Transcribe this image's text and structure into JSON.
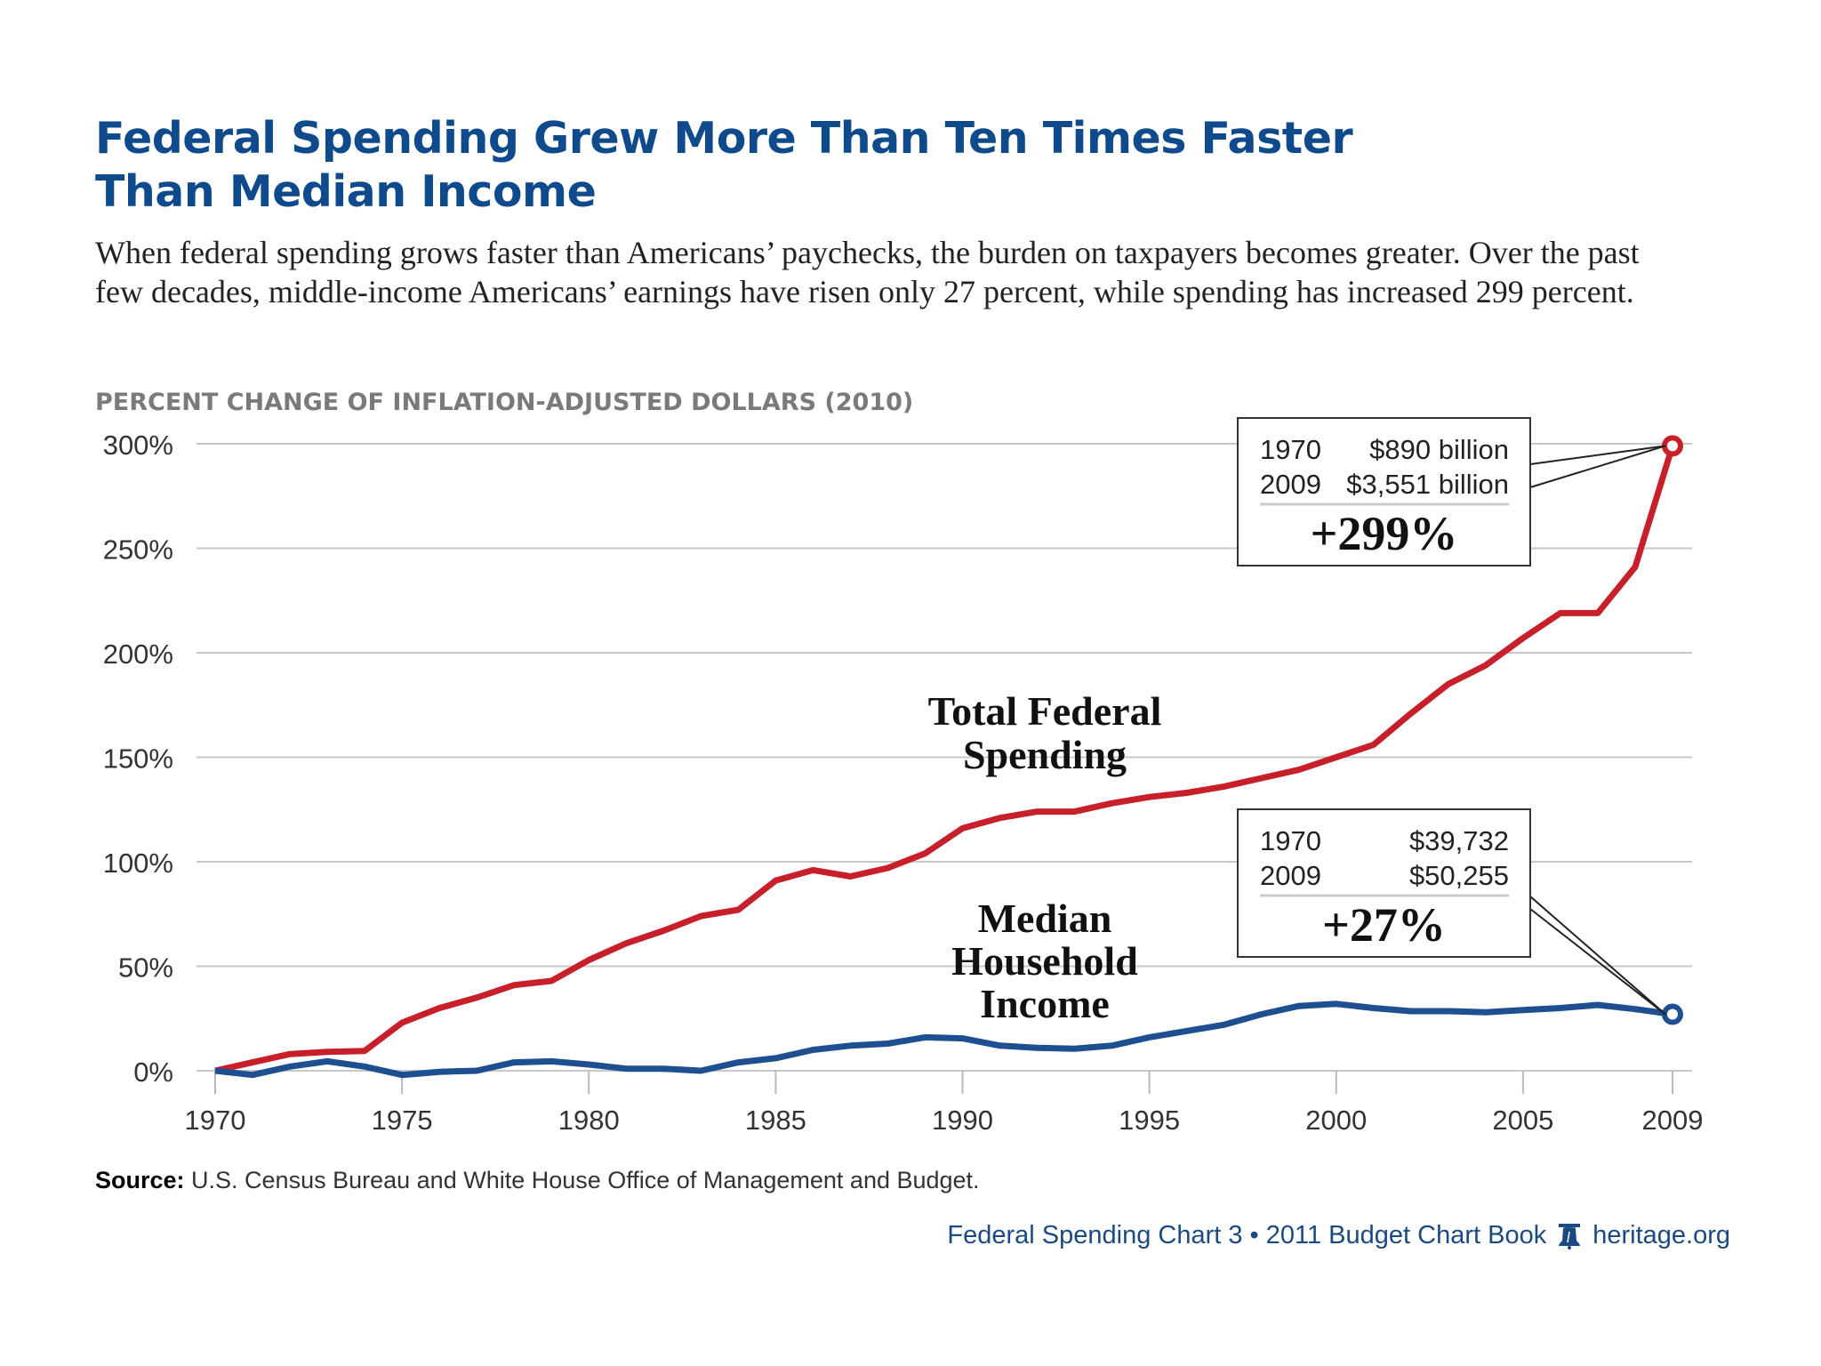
{
  "header": {
    "title_line1": "Federal Spending Grew More Than Ten Times Faster",
    "title_line2": "Than Median Income",
    "subtitle": "When federal spending grows faster than Americans’ paychecks, the burden on taxpayers becomes greater. Over the past few decades, middle-income Americans’ earnings have risen only 27 percent, while spending has increased 299 percent."
  },
  "chart_data": {
    "type": "line",
    "ylabel": "PERCENT CHANGE OF INFLATION-ADJUSTED DOLLARS (2010)",
    "ylim": [
      0,
      300
    ],
    "xlim": [
      1970,
      2009
    ],
    "grid": true,
    "y_ticks": [
      "0%",
      "50%",
      "100%",
      "150%",
      "200%",
      "250%",
      "300%"
    ],
    "y_tick_values": [
      0,
      50,
      100,
      150,
      200,
      250,
      300
    ],
    "x_ticks": [
      "1970",
      "1975",
      "1980",
      "1985",
      "1990",
      "1995",
      "2000",
      "2005",
      "2009"
    ],
    "x_tick_values": [
      1970,
      1975,
      1980,
      1985,
      1990,
      1995,
      2000,
      2005,
      2009
    ],
    "x": [
      1970,
      1971,
      1972,
      1973,
      1974,
      1975,
      1976,
      1977,
      1978,
      1979,
      1980,
      1981,
      1982,
      1983,
      1984,
      1985,
      1986,
      1987,
      1988,
      1989,
      1990,
      1991,
      1992,
      1993,
      1994,
      1995,
      1996,
      1997,
      1998,
      1999,
      2000,
      2001,
      2002,
      2003,
      2004,
      2005,
      2006,
      2007,
      2008,
      2009
    ],
    "series": [
      {
        "name": "Total Federal Spending",
        "label_line1": "Total Federal",
        "label_line2": "Spending",
        "color": "#c8202a",
        "values": [
          0,
          4,
          8,
          9,
          9.5,
          23,
          30,
          35,
          41,
          43,
          53,
          61,
          67,
          74,
          77,
          91,
          96,
          93,
          97,
          104,
          116,
          121,
          124,
          124,
          128,
          131,
          133,
          136,
          140,
          144,
          150,
          156,
          171,
          185,
          194,
          207,
          219,
          219,
          241,
          299
        ]
      },
      {
        "name": "Median Household Income",
        "label_line1": "Median",
        "label_line2": "Household",
        "label_line3": "Income",
        "color": "#1d4f91",
        "values": [
          0,
          -2,
          2,
          4.5,
          2,
          -2,
          -0.5,
          0,
          4,
          4.5,
          3,
          1,
          1,
          0,
          4,
          6,
          10,
          12,
          13,
          16,
          15.5,
          12,
          11,
          10.5,
          12,
          16,
          19,
          22,
          27,
          31,
          32,
          30,
          28.5,
          28.5,
          28,
          29,
          30,
          31.5,
          29.5,
          27
        ]
      }
    ],
    "annotations": [
      {
        "row1_year": "1970",
        "row1_value": "$890 billion",
        "row2_year": "2009",
        "row2_value": "$3,551 billion",
        "change": "+299%"
      },
      {
        "row1_year": "1970",
        "row1_value": "$39,732",
        "row2_year": "2009",
        "row2_value": "$50,255",
        "change": "+27%"
      }
    ]
  },
  "footer": {
    "source_label": "Source:",
    "source_text": " U.S. Census Bureau and White House Office of Management and Budget.",
    "credit": "Federal Spending Chart 3 • 2011 Budget Chart Book",
    "logo_icon": "liberty-bell-icon",
    "site": "heritage.org"
  }
}
